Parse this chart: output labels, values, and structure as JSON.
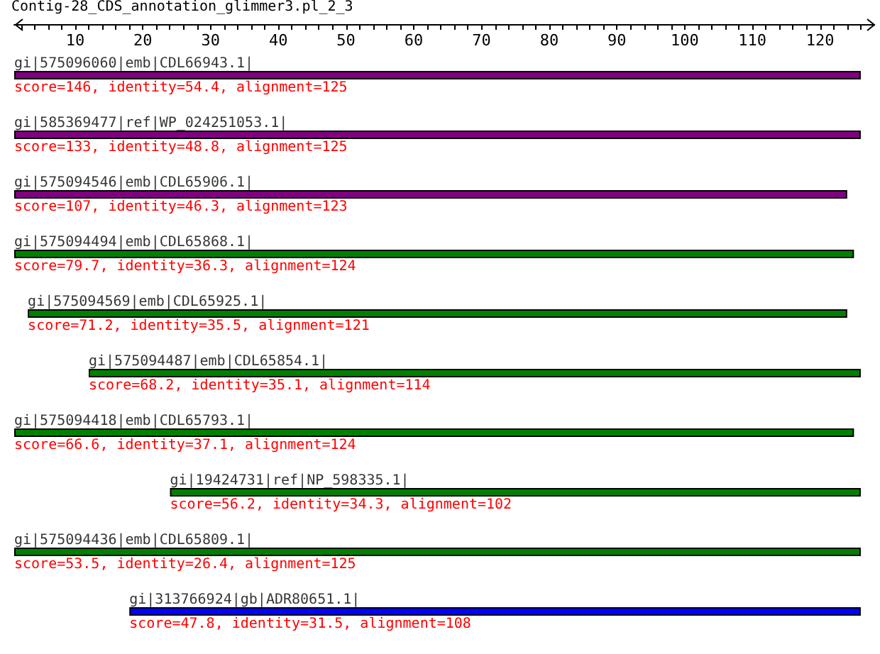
{
  "chart_data": {
    "type": "bar",
    "orientation": "horizontal",
    "title": "Contig-28_CDS_annotation_glimmer3.pl_2_3",
    "categories": [
      "gi|575096060|emb|CDL66943.1|",
      "gi|585369477|ref|WP_024251053.1|",
      "gi|575094546|emb|CDL65906.1|",
      "gi|575094494|emb|CDL65868.1|",
      "gi|575094569|emb|CDL65925.1|",
      "gi|575094487|emb|CDL65854.1|",
      "gi|575094418|emb|CDL65793.1|",
      "gi|19424731|ref|NP_598335.1|",
      "gi|575094436|emb|CDL65809.1|",
      "gi|313766924|gb|ADR80651.1|"
    ],
    "base": [
      1,
      1,
      1,
      1,
      3,
      12,
      1,
      24,
      1,
      18
    ],
    "values": [
      125,
      125,
      123,
      124,
      121,
      114,
      124,
      102,
      125,
      108
    ],
    "colors": [
      "#800080",
      "#800080",
      "#800080",
      "#008000",
      "#008000",
      "#008000",
      "#008000",
      "#008000",
      "#008000",
      "#0000ff"
    ],
    "value_labels": [
      "score=146, identity=54.4, alignment=125",
      "score=133, identity=48.8, alignment=125",
      "score=107, identity=46.3, alignment=123",
      "score=79.7, identity=36.3, alignment=124",
      "score=71.2, identity=35.5, alignment=121",
      "score=68.2, identity=35.1, alignment=114",
      "score=66.6, identity=37.1, alignment=124",
      "score=56.2, identity=34.3, alignment=102",
      "score=53.5, identity=26.4, alignment=125",
      "score=47.8, identity=31.5, alignment=108"
    ],
    "xlim": [
      1,
      128
    ],
    "xticks": [
      {
        "value": 2,
        "label": null
      },
      {
        "value": 4,
        "label": null
      },
      {
        "value": 6,
        "label": null
      },
      {
        "value": 8,
        "label": null
      },
      10,
      {
        "value": 12,
        "label": null
      },
      {
        "value": 14,
        "label": null
      },
      {
        "value": 16,
        "label": null
      },
      {
        "value": 18,
        "label": null
      },
      20,
      {
        "value": 22,
        "label": null
      },
      {
        "value": 24,
        "label": null
      },
      {
        "value": 26,
        "label": null
      },
      {
        "value": 28,
        "label": null
      },
      30,
      {
        "value": 32,
        "label": null
      },
      {
        "value": 34,
        "label": null
      },
      {
        "value": 36,
        "label": null
      },
      {
        "value": 38,
        "label": null
      },
      40,
      {
        "value": 42,
        "label": null
      },
      {
        "value": 44,
        "label": null
      },
      {
        "value": 46,
        "label": null
      },
      {
        "value": 48,
        "label": null
      },
      50,
      {
        "value": 52,
        "label": null
      },
      {
        "value": 54,
        "label": null
      },
      {
        "value": 56,
        "label": null
      },
      {
        "value": 58,
        "label": null
      },
      60,
      {
        "value": 62,
        "label": null
      },
      {
        "value": 64,
        "label": null
      },
      {
        "value": 66,
        "label": null
      },
      {
        "value": 68,
        "label": null
      },
      70,
      {
        "value": 72,
        "label": null
      },
      {
        "value": 74,
        "label": null
      },
      {
        "value": 76,
        "label": null
      },
      {
        "value": 78,
        "label": null
      },
      80,
      {
        "value": 82,
        "label": null
      },
      {
        "value": 84,
        "label": null
      },
      {
        "value": 86,
        "label": null
      },
      {
        "value": 88,
        "label": null
      },
      90,
      {
        "value": 92,
        "label": null
      },
      {
        "value": 94,
        "label": null
      },
      {
        "value": 96,
        "label": null
      },
      {
        "value": 98,
        "label": null
      },
      100,
      {
        "value": 102,
        "label": null
      },
      {
        "value": 104,
        "label": null
      },
      {
        "value": 106,
        "label": null
      },
      {
        "value": 108,
        "label": null
      },
      110,
      {
        "value": 112,
        "label": null
      },
      {
        "value": 114,
        "label": null
      },
      {
        "value": 116,
        "label": null
      },
      {
        "value": 118,
        "label": null
      },
      120,
      {
        "value": 122,
        "label": null
      },
      {
        "value": 124,
        "label": null
      },
      {
        "value": 126,
        "label": null
      }
    ],
    "tick_labels": "x",
    "grid": false
  }
}
